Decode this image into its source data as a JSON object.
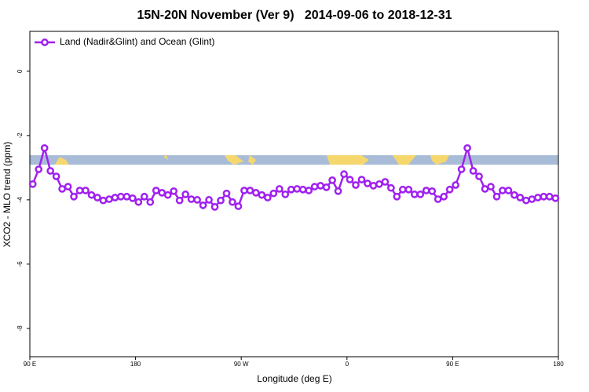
{
  "chart_data": {
    "type": "line",
    "title": "15N-20N November (Ver 9)   2014-09-06 to 2018-12-31",
    "xlabel": "Longitude (deg E)",
    "ylabel": "XCO2 - MLO trend (ppm)",
    "xlim": [
      90,
      540
    ],
    "xticks": [
      {
        "value": 90,
        "label": "90 E"
      },
      180,
      {
        "value": 270,
        "label": "90 W"
      },
      {
        "value": 360,
        "label": "0"
      },
      {
        "value": 450,
        "label": "90 E"
      },
      {
        "value": 540,
        "label": "180"
      }
    ],
    "ylim": [
      -8.88,
      1.24
    ],
    "yticks": [
      0,
      -2,
      -4,
      -6,
      -8
    ],
    "grid": false,
    "legend": "top-left",
    "series": [
      {
        "name": "Land (Nadir&Glint) and Ocean (Glint)",
        "color": "#a020f0",
        "x": [
          92.5,
          97.5,
          102.5,
          107.5,
          112.5,
          117.5,
          122.5,
          127.5,
          132.5,
          137.5,
          142.5,
          147.5,
          152.5,
          157.5,
          162.5,
          167.5,
          172.5,
          177.5,
          182.5,
          187.5,
          192.5,
          197.5,
          202.5,
          207.5,
          212.5,
          217.5,
          222.5,
          227.5,
          232.5,
          237.5,
          242.5,
          247.5,
          252.5,
          257.5,
          262.5,
          267.5,
          272.5,
          277.5,
          282.5,
          287.5,
          292.5,
          297.5,
          302.5,
          307.5,
          312.5,
          317.5,
          322.5,
          327.5,
          332.5,
          337.5,
          342.5,
          347.5,
          352.5,
          357.5,
          362.5,
          367.5,
          372.5,
          377.5,
          382.5,
          387.5,
          392.5,
          397.5,
          402.5,
          407.5,
          412.5,
          417.5,
          422.5,
          427.5,
          432.5,
          437.5,
          442.5,
          447.5,
          452.5,
          457.5,
          462.5,
          467.5,
          472.5,
          477.5,
          482.5,
          487.5,
          492.5,
          497.5,
          502.5,
          507.5,
          512.5,
          517.5,
          522.5,
          527.5,
          532.5,
          537.5
        ],
        "values": [
          -3.51,
          -3.05,
          -2.39,
          -3.1,
          -3.27,
          -3.66,
          -3.59,
          -3.9,
          -3.71,
          -3.71,
          -3.85,
          -3.93,
          -4.02,
          -3.98,
          -3.93,
          -3.9,
          -3.9,
          -3.95,
          -4.07,
          -3.9,
          -4.07,
          -3.71,
          -3.78,
          -3.85,
          -3.73,
          -4.02,
          -3.83,
          -3.98,
          -4.0,
          -4.17,
          -4.0,
          -4.22,
          -4.02,
          -3.8,
          -4.07,
          -4.2,
          -3.71,
          -3.71,
          -3.78,
          -3.85,
          -3.93,
          -3.8,
          -3.66,
          -3.83,
          -3.68,
          -3.66,
          -3.68,
          -3.71,
          -3.59,
          -3.56,
          -3.61,
          -3.39,
          -3.73,
          -3.2,
          -3.37,
          -3.54,
          -3.37,
          -3.49,
          -3.56,
          -3.51,
          -3.44,
          -3.63,
          -3.9,
          -3.68,
          -3.68,
          -3.83,
          -3.83,
          -3.71,
          -3.73,
          -3.98,
          -3.9,
          -3.68,
          -3.54,
          -3.05,
          -2.39,
          -3.1,
          -3.27,
          -3.66,
          -3.59,
          -3.9,
          -3.71,
          -3.71,
          -3.85,
          -3.93,
          -4.02,
          -3.98,
          -3.93,
          -3.9,
          -3.9,
          -3.95
        ]
      }
    ]
  }
}
